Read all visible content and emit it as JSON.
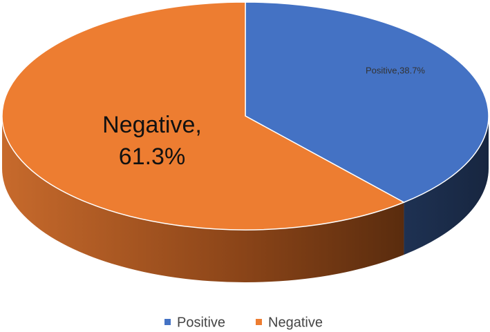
{
  "chart_data": {
    "type": "pie",
    "categories": [
      "Positive",
      "Negative"
    ],
    "values": [
      38.7,
      61.3
    ],
    "value_labels": [
      "Positive,38.7%",
      "Negative, 61.3%"
    ],
    "colors": [
      "#4472c4",
      "#ed7d31"
    ],
    "legend": "bottom"
  }
}
